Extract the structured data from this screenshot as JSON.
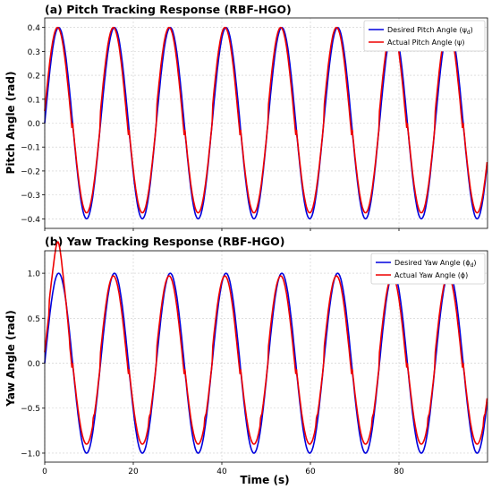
{
  "chart_data": [
    {
      "type": "line",
      "title": "(a) Pitch Tracking Response (RBF-HGO)",
      "xlabel": "",
      "ylabel": "Pitch Angle (rad)",
      "xlim": [
        0,
        100
      ],
      "ylim": [
        -0.44,
        0.44
      ],
      "xticks": [
        0,
        20,
        40,
        60,
        80
      ],
      "yticks": [
        -0.4,
        -0.3,
        -0.2,
        -0.1,
        0.0,
        0.1,
        0.2,
        0.3,
        0.4
      ],
      "ytick_labels": [
        "−0.4",
        "−0.3",
        "−0.2",
        "−0.1",
        "0.0",
        "0.1",
        "0.2",
        "0.3",
        "0.4"
      ],
      "grid": true,
      "legend_position": "top-right",
      "period_s": 12.6,
      "series": [
        {
          "name": "Desired Pitch Angle (ψ_d)",
          "label_main": "Desired Pitch Angle (ψ",
          "label_sub": "d",
          "label_end": ")",
          "color": "#0000dd",
          "kind": "reference",
          "amplitude": 0.4
        },
        {
          "name": "Actual Pitch Angle (ψ)",
          "label_main": "Actual Pitch Angle (ψ)",
          "label_sub": "",
          "label_end": "",
          "color": "#ee0000",
          "kind": "actual",
          "amplitude_pos": 0.4,
          "trough": -0.375,
          "notch_level": -0.3
        }
      ]
    },
    {
      "type": "line",
      "title": "(b) Yaw Tracking Response (RBF-HGO)",
      "xlabel": "Time (s)",
      "ylabel": "Yaw Angle (rad)",
      "xlim": [
        0,
        100
      ],
      "ylim": [
        -1.1,
        1.25
      ],
      "xticks": [
        0,
        20,
        40,
        60,
        80
      ],
      "yticks": [
        -1.0,
        -0.5,
        0.0,
        0.5,
        1.0
      ],
      "ytick_labels": [
        "−1.0",
        "−0.5",
        "0.0",
        "0.5",
        "1.0"
      ],
      "grid": true,
      "legend_position": "top-right",
      "period_s": 12.6,
      "series": [
        {
          "name": "Desired Yaw Angle (ϕ_d)",
          "label_main": "Desired Yaw Angle (ϕ",
          "label_sub": "d",
          "label_end": ")",
          "color": "#0000dd",
          "kind": "reference",
          "amplitude": 1.0
        },
        {
          "name": "Actual Yaw Angle (ϕ)",
          "label_main": "Actual Yaw Angle (ϕ)",
          "label_sub": "",
          "label_end": "",
          "color": "#ee0000",
          "kind": "actual",
          "amplitude_pos": 0.97,
          "first_peak": 1.16,
          "trough": -0.9,
          "notch_level": -0.6
        }
      ]
    }
  ]
}
